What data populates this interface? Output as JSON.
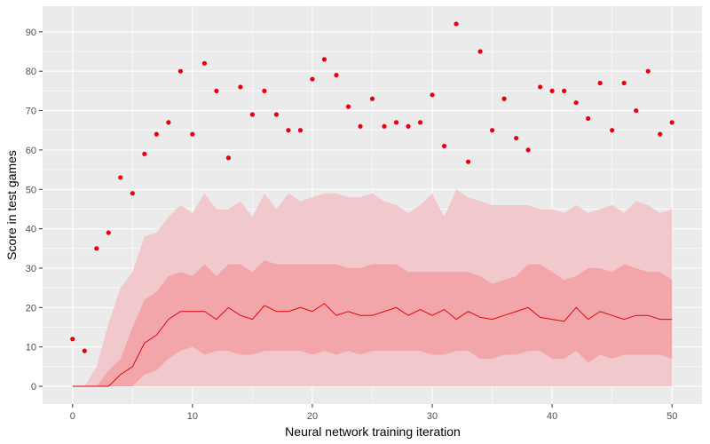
{
  "chart_data": {
    "type": "scatter",
    "title": "",
    "xlabel": "Neural network training iteration",
    "ylabel": "Score in test games",
    "xlim": [
      -2.5,
      52.5
    ],
    "ylim": [
      -4.5,
      96.5
    ],
    "xticks": [
      0,
      10,
      20,
      30,
      40,
      50
    ],
    "yticks": [
      0,
      10,
      20,
      30,
      40,
      50,
      60,
      70,
      80,
      90
    ],
    "grid": true,
    "legend": "none",
    "colors": {
      "panel": "#ebebeb",
      "grid": "#ffffff",
      "point": "#e8000b",
      "median_line": "#e8000b",
      "band_outer": "#f1c9cc",
      "band_inner": "#f2a6a9"
    },
    "x": [
      0,
      1,
      2,
      3,
      4,
      5,
      6,
      7,
      8,
      9,
      10,
      11,
      12,
      13,
      14,
      15,
      16,
      17,
      18,
      19,
      20,
      21,
      22,
      23,
      24,
      25,
      26,
      27,
      28,
      29,
      30,
      31,
      32,
      33,
      34,
      35,
      36,
      37,
      38,
      39,
      40,
      41,
      42,
      43,
      44,
      45,
      46,
      47,
      48,
      49,
      50
    ],
    "series": [
      {
        "kind": "points",
        "values": [
          12,
          9,
          35,
          39,
          53,
          49,
          59,
          64,
          67,
          80,
          64,
          82,
          75,
          58,
          76,
          69,
          75,
          69,
          65,
          65,
          78,
          83,
          79,
          71,
          66,
          73,
          66,
          67,
          66,
          67,
          74,
          61,
          92,
          57,
          85,
          65,
          73,
          63,
          60,
          76,
          75,
          75,
          72,
          68,
          77,
          65,
          77,
          70,
          80,
          64,
          67
        ]
      },
      {
        "kind": "median-line",
        "values": [
          0,
          0,
          0,
          0,
          3,
          5,
          11,
          13,
          17,
          19,
          19,
          19,
          17,
          20,
          18,
          17,
          20.5,
          19,
          19,
          20,
          19,
          21,
          18,
          19,
          18,
          18,
          19,
          20,
          18,
          19.5,
          18,
          19.5,
          17,
          19,
          17.5,
          17,
          18,
          19,
          20,
          17.5,
          17,
          16.5,
          20,
          17,
          19,
          18,
          17,
          18,
          18,
          17,
          17
        ]
      },
      {
        "kind": "inner-band",
        "lower": [
          0,
          0,
          0,
          0,
          0,
          0,
          3,
          4,
          7,
          9,
          10,
          8,
          9,
          9,
          8,
          8,
          9,
          9,
          9,
          9,
          8,
          9,
          8,
          9,
          8,
          9,
          9,
          9,
          9,
          9,
          8,
          8,
          9,
          9,
          7,
          7,
          8,
          8,
          9,
          9,
          7,
          7,
          9,
          6,
          8,
          7,
          8,
          8,
          8,
          8,
          7
        ],
        "upper": [
          0,
          0,
          0,
          4,
          7,
          15,
          22,
          24,
          28,
          29,
          28,
          31,
          28,
          31,
          31,
          29,
          32,
          31,
          31,
          31,
          31,
          31,
          31,
          30,
          30,
          31,
          31,
          31,
          29,
          29,
          29,
          29,
          29,
          29,
          28,
          26,
          27,
          28,
          31,
          31,
          29,
          27,
          28,
          30,
          30,
          29,
          31,
          30,
          29,
          29,
          27
        ]
      },
      {
        "kind": "outer-band",
        "lower": [
          0,
          0,
          0,
          0,
          0,
          0,
          0,
          0,
          0,
          0,
          0,
          0,
          0,
          0,
          0,
          0,
          0,
          0,
          0,
          0,
          0,
          0,
          0,
          0,
          0,
          0,
          0,
          0,
          0,
          0,
          0,
          0,
          0,
          0,
          0,
          0,
          0,
          0,
          0,
          0,
          0,
          0,
          0,
          0,
          0,
          0,
          0,
          0,
          0,
          0,
          0
        ],
        "upper": [
          0,
          0,
          5,
          16,
          25,
          29,
          38,
          39,
          43,
          46,
          44,
          49,
          45,
          45,
          47,
          43,
          49,
          45,
          49,
          47,
          48,
          49,
          49,
          48,
          48,
          49,
          47,
          46,
          44,
          46,
          49,
          43,
          50,
          48,
          47,
          46,
          46,
          46,
          46,
          45,
          45,
          44,
          46,
          44,
          45,
          46,
          44,
          47,
          46,
          44,
          45
        ]
      }
    ]
  }
}
